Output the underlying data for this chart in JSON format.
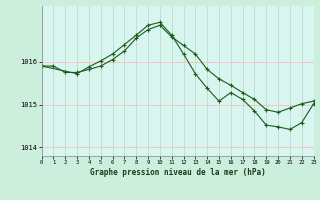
{
  "title": "Graphe pression niveau de la mer (hPa)",
  "bg_color": "#cceedd",
  "plot_bg_color": "#d8f5f0",
  "grid_color": "#ffaaaa",
  "grid_color_v": "#bbddcc",
  "line_color": "#1a5c1a",
  "xlim": [
    0,
    23
  ],
  "ylim": [
    1013.8,
    1017.3
  ],
  "yticks": [
    1014,
    1015,
    1016
  ],
  "xticks": [
    0,
    1,
    2,
    3,
    4,
    5,
    6,
    7,
    8,
    9,
    10,
    11,
    12,
    13,
    14,
    15,
    16,
    17,
    18,
    19,
    20,
    21,
    22,
    23
  ],
  "series1_x": [
    0,
    1,
    2,
    3,
    4,
    5,
    6,
    7,
    8,
    9,
    10,
    11,
    12,
    13,
    14,
    15,
    16,
    17,
    18,
    19,
    20,
    21,
    22,
    23
  ],
  "series1_y": [
    1015.9,
    1015.9,
    1015.75,
    1015.75,
    1015.82,
    1015.9,
    1016.05,
    1016.25,
    1016.55,
    1016.75,
    1016.85,
    1016.58,
    1016.38,
    1016.18,
    1015.82,
    1015.6,
    1015.45,
    1015.28,
    1015.12,
    1014.88,
    1014.82,
    1014.92,
    1015.02,
    1015.08
  ],
  "series2_x": [
    0,
    3,
    4,
    5,
    6,
    7,
    8,
    9,
    10,
    11,
    12,
    13,
    14,
    15,
    16,
    17,
    18,
    19,
    20,
    21,
    22,
    23
  ],
  "series2_y": [
    1015.9,
    1015.72,
    1015.88,
    1016.02,
    1016.18,
    1016.4,
    1016.62,
    1016.85,
    1016.92,
    1016.62,
    1016.18,
    1015.72,
    1015.38,
    1015.08,
    1015.28,
    1015.12,
    1014.85,
    1014.52,
    1014.48,
    1014.42,
    1014.58,
    1015.02
  ]
}
